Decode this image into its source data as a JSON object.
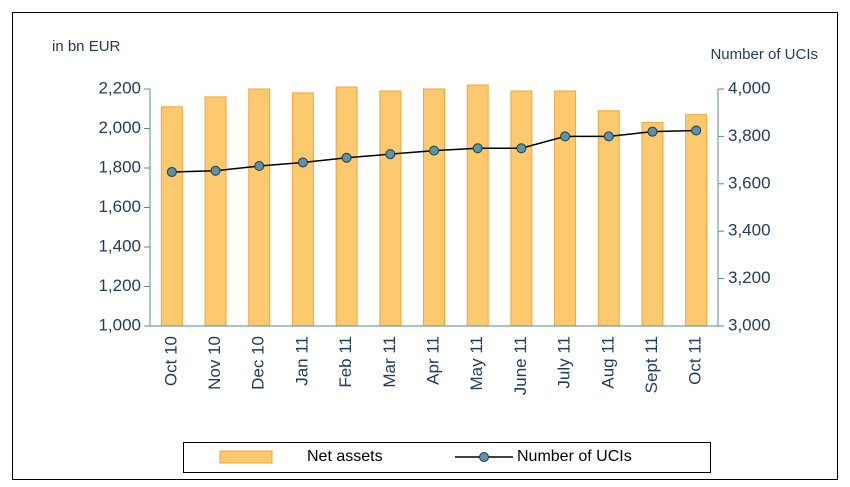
{
  "chart_data": {
    "type": "bar",
    "categories": [
      "Oct 10",
      "Nov 10",
      "Dec 10",
      "Jan 11",
      "Feb 11",
      "Mar 11",
      "Apr 11",
      "May 11",
      "June 11",
      "July 11",
      "Aug 11",
      "Sept 11",
      "Oct 11"
    ],
    "y_label": "in bn EUR",
    "y2_label": "Number of UCIs",
    "series": [
      {
        "name": "Net assets",
        "type": "bar",
        "color": "#fcc96f",
        "values": [
          2110,
          2160,
          2200,
          2180,
          2210,
          2190,
          2200,
          2220,
          2190,
          2190,
          2090,
          2030,
          2070
        ]
      },
      {
        "name": "Number of UCIs",
        "type": "line",
        "axis": "y2",
        "color": "#000000",
        "marker_color": "#5b93a8",
        "values": [
          3650,
          3655,
          3675,
          3690,
          3710,
          3725,
          3740,
          3750,
          3750,
          3800,
          3800,
          3820,
          3825
        ]
      }
    ],
    "ylim": [
      1000,
      2200
    ],
    "yticks": [
      {
        "value": 1000,
        "label": "1,000"
      },
      {
        "value": 1200,
        "label": "1,200"
      },
      {
        "value": 1400,
        "label": "1,400"
      },
      {
        "value": 1600,
        "label": "1,600"
      },
      {
        "value": 1800,
        "label": "1,800"
      },
      {
        "value": 2000,
        "label": "2,000"
      },
      {
        "value": 2200,
        "label": "2,200"
      }
    ],
    "y2lim": [
      3000,
      4000
    ],
    "y2ticks": [
      {
        "value": 3000,
        "label": "3,000"
      },
      {
        "value": 3200,
        "label": "3,200"
      },
      {
        "value": 3400,
        "label": "3,400"
      },
      {
        "value": 3600,
        "label": "3,600"
      },
      {
        "value": 3800,
        "label": "3,800"
      },
      {
        "value": 4000,
        "label": "4,000"
      }
    ],
    "legend": "bottom"
  }
}
